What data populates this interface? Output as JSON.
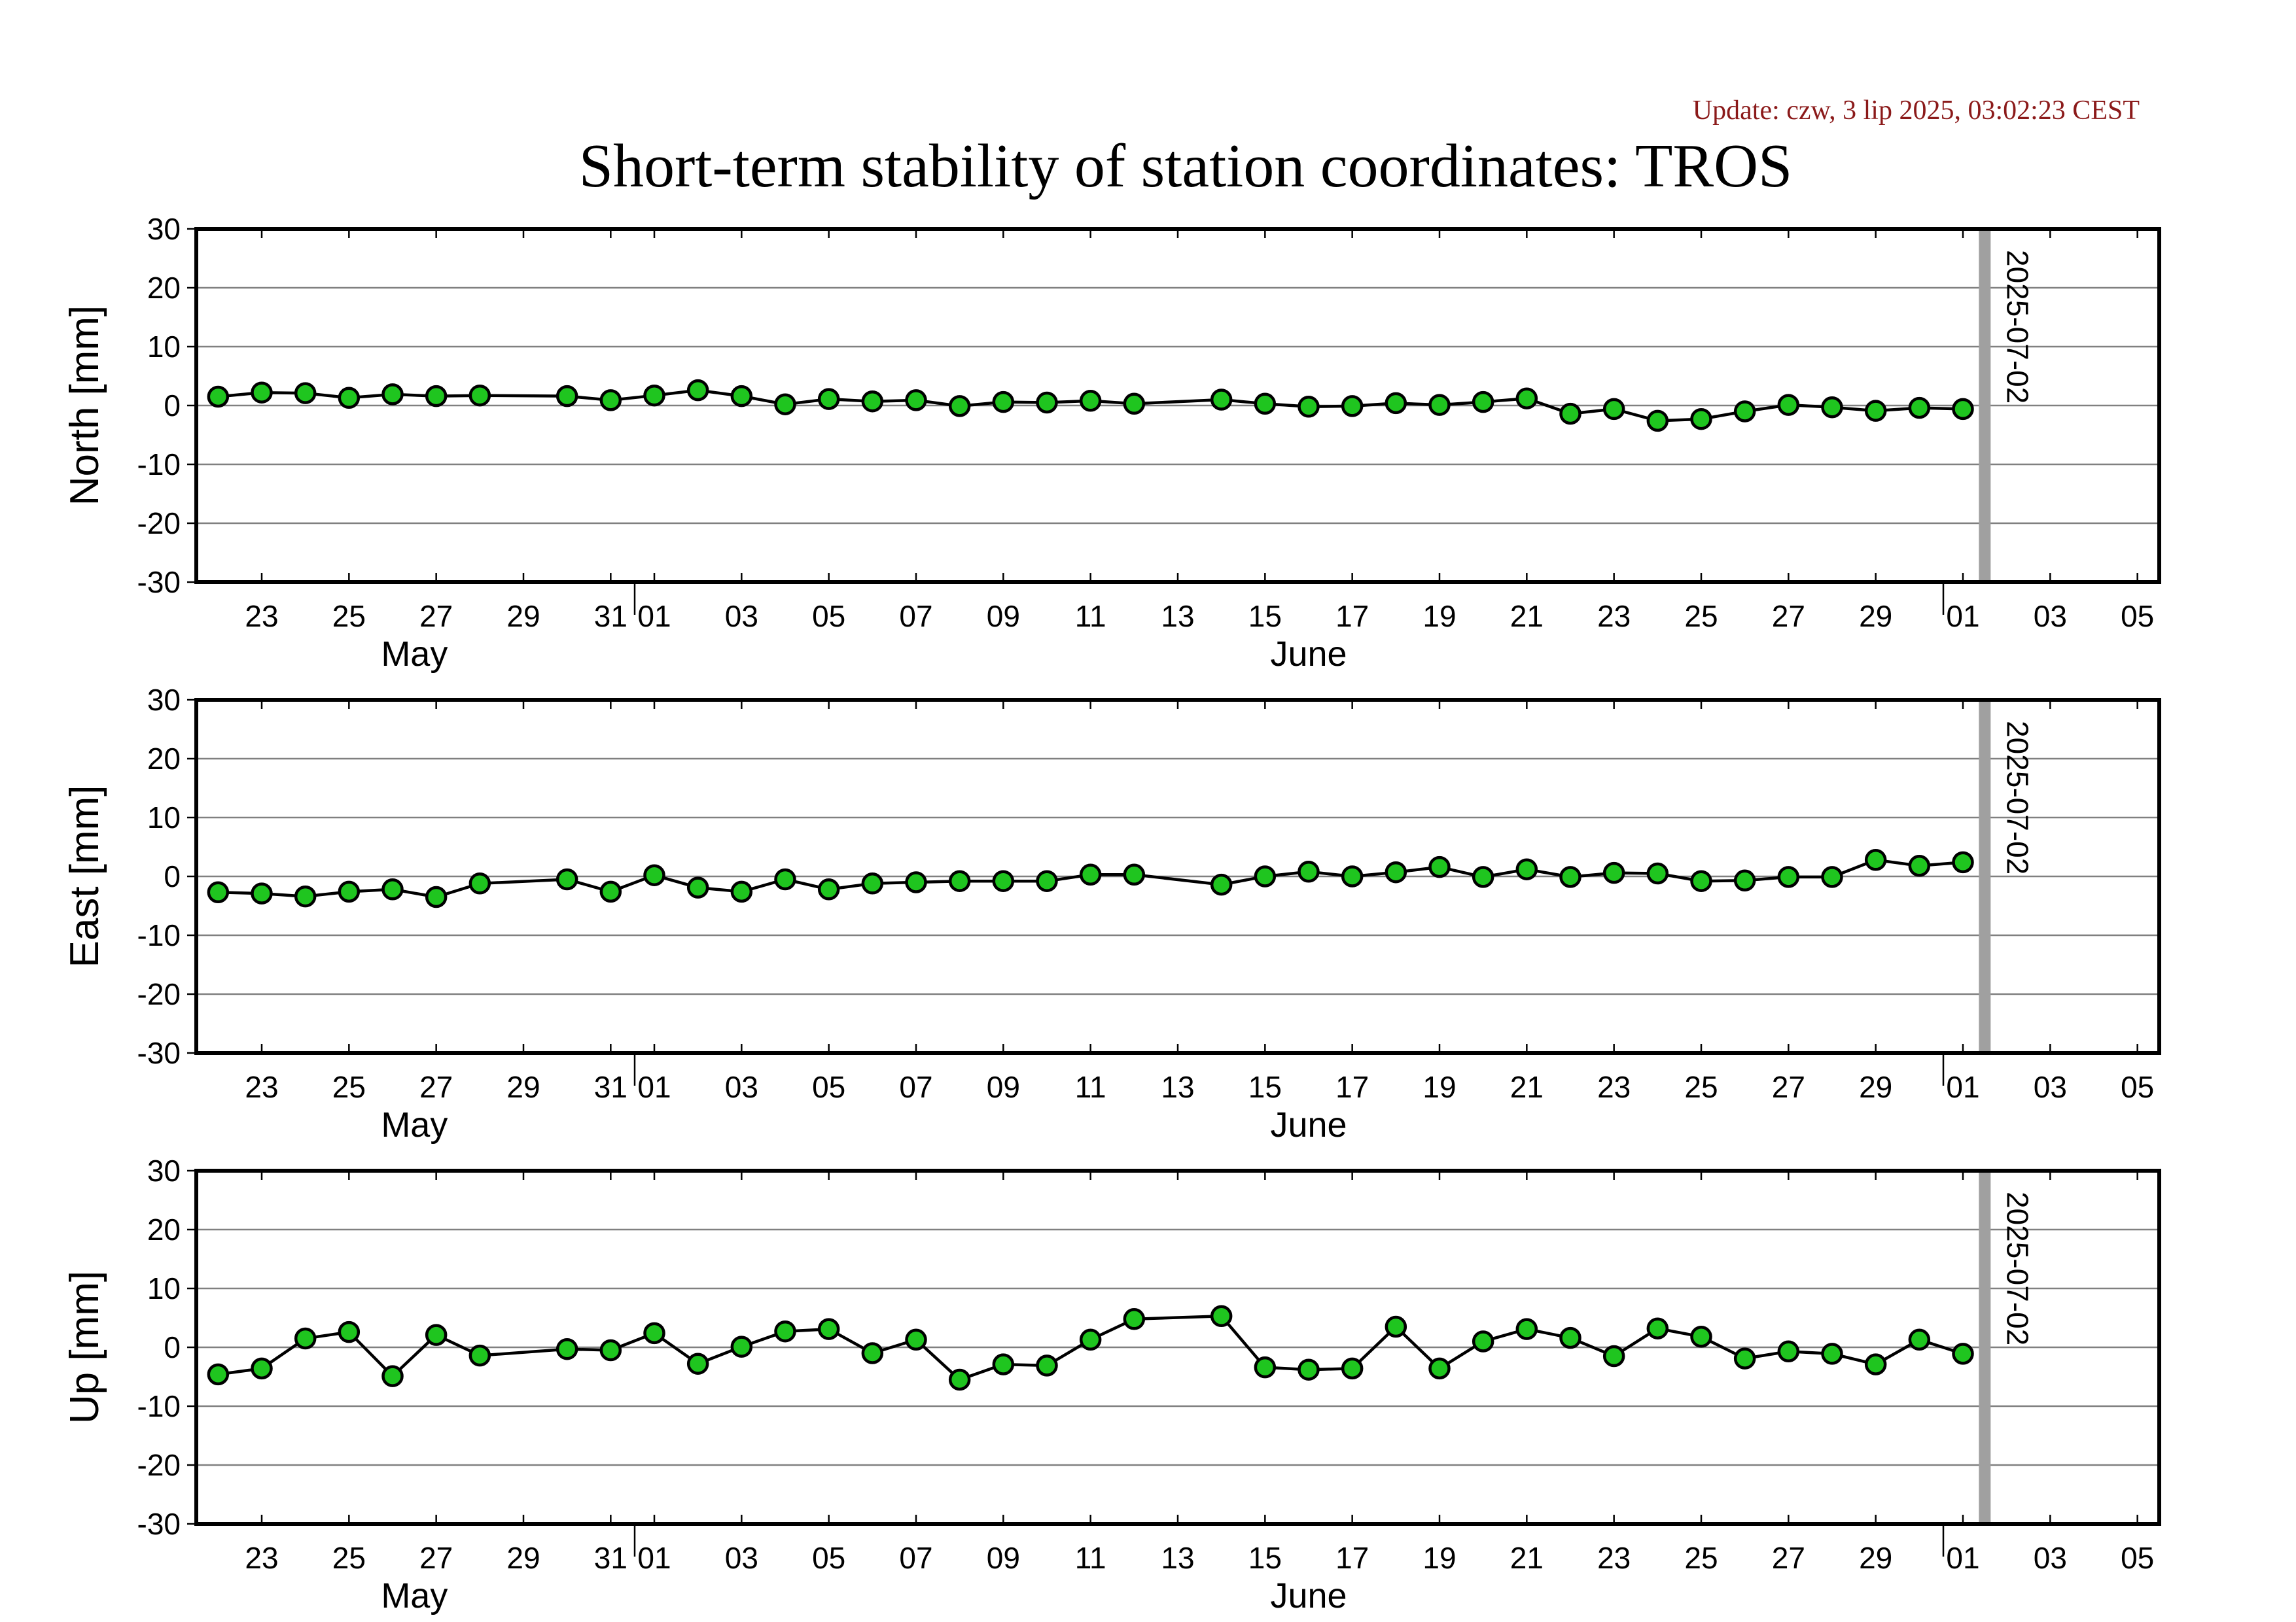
{
  "update_text": "Update: czw, 3 lip 2025, 03:02:23 CEST",
  "title": "Short-term stability of station coordinates: TROS",
  "colors": {
    "marker_fill": "#1fc51f",
    "marker_stroke": "#000000",
    "line": "#000000",
    "update_text": "#8b1a1a",
    "gridline": "#808080",
    "date_marker": "#a0a0a0"
  },
  "chart_data": [
    {
      "type": "line",
      "ylabel": "North [mm]",
      "ylim": [
        -30,
        30
      ],
      "yticks": [
        -30,
        -20,
        -10,
        0,
        10,
        20,
        30
      ],
      "xlim": [
        "2025-05-21T12:00",
        "2025-07-05T12:00"
      ],
      "x_tick_labels": [
        "23",
        "25",
        "27",
        "29",
        "31",
        "01",
        "03",
        "05",
        "07",
        "09",
        "11",
        "13",
        "15",
        "17",
        "19",
        "21",
        "23",
        "25",
        "27",
        "29",
        "01",
        "03",
        "05"
      ],
      "month_labels": [
        "May",
        "June"
      ],
      "grid": "horizontal",
      "marker_label": "2025-07-02",
      "x": [
        "2025-05-22",
        "2025-05-23",
        "2025-05-24",
        "2025-05-25",
        "2025-05-26",
        "2025-05-27",
        "2025-05-28",
        "2025-05-30",
        "2025-05-31",
        "2025-06-01",
        "2025-06-02",
        "2025-06-03",
        "2025-06-04",
        "2025-06-05",
        "2025-06-06",
        "2025-06-07",
        "2025-06-08",
        "2025-06-09",
        "2025-06-10",
        "2025-06-11",
        "2025-06-12",
        "2025-06-14",
        "2025-06-15",
        "2025-06-16",
        "2025-06-17",
        "2025-06-18",
        "2025-06-19",
        "2025-06-20",
        "2025-06-21",
        "2025-06-22",
        "2025-06-23",
        "2025-06-24",
        "2025-06-25",
        "2025-06-26",
        "2025-06-27",
        "2025-06-28",
        "2025-06-29",
        "2025-06-30",
        "2025-07-01"
      ],
      "values": [
        1.5,
        2.2,
        2.1,
        1.3,
        1.9,
        1.6,
        1.7,
        1.6,
        0.9,
        1.7,
        2.6,
        1.6,
        0.2,
        1.1,
        0.7,
        0.9,
        -0.1,
        0.6,
        0.5,
        0.8,
        0.3,
        1.0,
        0.3,
        -0.2,
        -0.1,
        0.4,
        0.1,
        0.6,
        1.2,
        -1.4,
        -0.6,
        -2.6,
        -2.3,
        -1.0,
        0.1,
        -0.3,
        -0.9,
        -0.4,
        -0.6
      ]
    },
    {
      "type": "line",
      "ylabel": "East [mm]",
      "ylim": [
        -30,
        30
      ],
      "yticks": [
        -30,
        -20,
        -10,
        0,
        10,
        20,
        30
      ],
      "xlim": [
        "2025-05-21T12:00",
        "2025-07-05T12:00"
      ],
      "x_tick_labels": [
        "23",
        "25",
        "27",
        "29",
        "31",
        "01",
        "03",
        "05",
        "07",
        "09",
        "11",
        "13",
        "15",
        "17",
        "19",
        "21",
        "23",
        "25",
        "27",
        "29",
        "01",
        "03",
        "05"
      ],
      "month_labels": [
        "May",
        "June"
      ],
      "grid": "horizontal",
      "marker_label": "2025-07-02",
      "x": [
        "2025-05-22",
        "2025-05-23",
        "2025-05-24",
        "2025-05-25",
        "2025-05-26",
        "2025-05-27",
        "2025-05-28",
        "2025-05-30",
        "2025-05-31",
        "2025-06-01",
        "2025-06-02",
        "2025-06-03",
        "2025-06-04",
        "2025-06-05",
        "2025-06-06",
        "2025-06-07",
        "2025-06-08",
        "2025-06-09",
        "2025-06-10",
        "2025-06-11",
        "2025-06-12",
        "2025-06-14",
        "2025-06-15",
        "2025-06-16",
        "2025-06-17",
        "2025-06-18",
        "2025-06-19",
        "2025-06-20",
        "2025-06-21",
        "2025-06-22",
        "2025-06-23",
        "2025-06-24",
        "2025-06-25",
        "2025-06-26",
        "2025-06-27",
        "2025-06-28",
        "2025-06-29",
        "2025-06-30",
        "2025-07-01"
      ],
      "values": [
        -2.7,
        -2.9,
        -3.4,
        -2.6,
        -2.2,
        -3.5,
        -1.2,
        -0.5,
        -2.6,
        0.2,
        -1.9,
        -2.6,
        -0.5,
        -2.2,
        -1.2,
        -1.0,
        -0.8,
        -0.8,
        -0.8,
        0.3,
        0.3,
        -1.4,
        0.0,
        0.8,
        0.0,
        0.7,
        1.6,
        -0.1,
        1.2,
        -0.1,
        0.6,
        0.5,
        -0.8,
        -0.7,
        -0.1,
        -0.1,
        2.8,
        1.8,
        2.4
      ]
    },
    {
      "type": "line",
      "ylabel": "Up [mm]",
      "ylim": [
        -30,
        30
      ],
      "yticks": [
        -30,
        -20,
        -10,
        0,
        10,
        20,
        30
      ],
      "xlim": [
        "2025-05-21T12:00",
        "2025-07-05T12:00"
      ],
      "x_tick_labels": [
        "23",
        "25",
        "27",
        "29",
        "31",
        "01",
        "03",
        "05",
        "07",
        "09",
        "11",
        "13",
        "15",
        "17",
        "19",
        "21",
        "23",
        "25",
        "27",
        "29",
        "01",
        "03",
        "05"
      ],
      "month_labels": [
        "May",
        "June"
      ],
      "grid": "horizontal",
      "marker_label": "2025-07-02",
      "x": [
        "2025-05-22",
        "2025-05-23",
        "2025-05-24",
        "2025-05-25",
        "2025-05-26",
        "2025-05-27",
        "2025-05-28",
        "2025-05-30",
        "2025-05-31",
        "2025-06-01",
        "2025-06-02",
        "2025-06-03",
        "2025-06-04",
        "2025-06-05",
        "2025-06-06",
        "2025-06-07",
        "2025-06-08",
        "2025-06-09",
        "2025-06-10",
        "2025-06-11",
        "2025-06-12",
        "2025-06-14",
        "2025-06-15",
        "2025-06-16",
        "2025-06-17",
        "2025-06-18",
        "2025-06-19",
        "2025-06-20",
        "2025-06-21",
        "2025-06-22",
        "2025-06-23",
        "2025-06-24",
        "2025-06-25",
        "2025-06-26",
        "2025-06-27",
        "2025-06-28",
        "2025-06-29",
        "2025-06-30",
        "2025-07-01"
      ],
      "values": [
        -4.6,
        -3.6,
        1.5,
        2.6,
        -4.9,
        2.1,
        -1.4,
        -0.3,
        -0.5,
        2.4,
        -2.8,
        0.1,
        2.7,
        3.1,
        -1.0,
        1.3,
        -5.5,
        -2.9,
        -3.1,
        1.3,
        4.8,
        5.3,
        -3.4,
        -3.8,
        -3.6,
        3.5,
        -3.6,
        1.0,
        3.1,
        1.6,
        -1.5,
        3.2,
        1.8,
        -1.9,
        -0.7,
        -1.1,
        -2.9,
        1.3,
        -1.1
      ]
    }
  ]
}
